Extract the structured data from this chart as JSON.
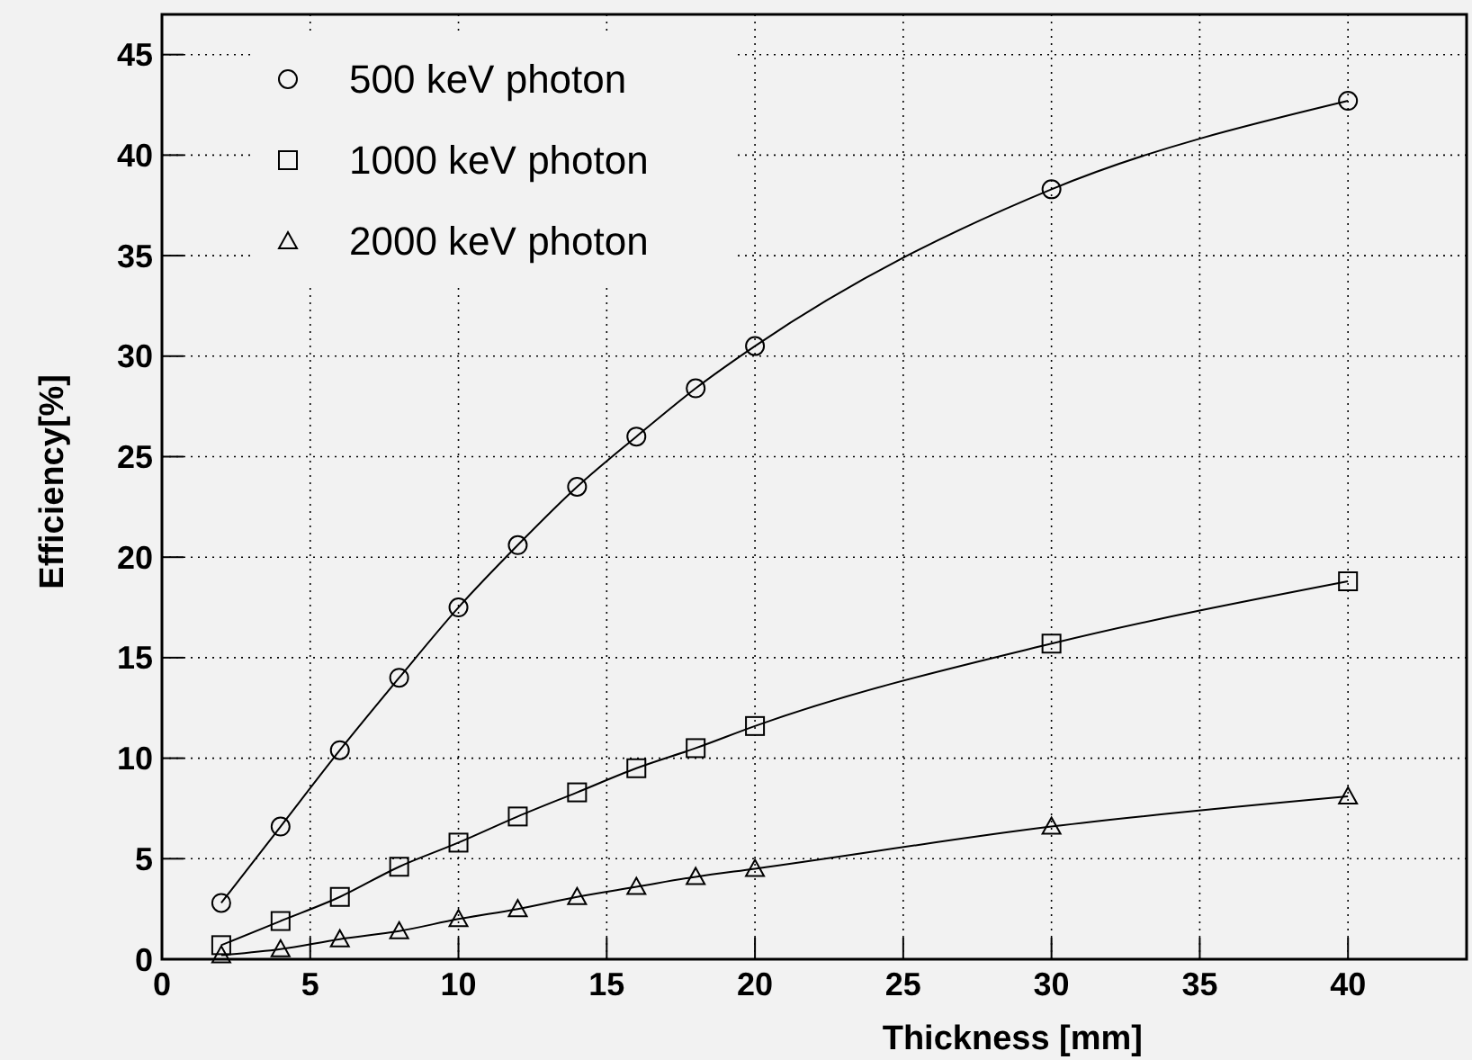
{
  "chart_data": {
    "type": "line",
    "xlabel": "Thickness [mm]",
    "ylabel": "Efficiency[%]",
    "x": [
      2,
      4,
      6,
      8,
      10,
      12,
      14,
      16,
      18,
      20,
      30,
      40
    ],
    "series": [
      {
        "name": "500 keV photon",
        "color": "#000000",
        "marker": "circle",
        "values": [
          2.8,
          6.6,
          10.4,
          14.0,
          17.5,
          20.6,
          23.5,
          26.0,
          28.4,
          30.5,
          38.3,
          42.7
        ]
      },
      {
        "name": "1000 keV photon",
        "color": "#000000",
        "marker": "square",
        "values": [
          0.7,
          1.9,
          3.1,
          4.6,
          5.8,
          7.1,
          8.3,
          9.5,
          10.5,
          11.6,
          15.7,
          18.8
        ]
      },
      {
        "name": "2000 keV photon",
        "color": "#000000",
        "marker": "triangle",
        "values": [
          0.2,
          0.5,
          1.0,
          1.4,
          2.0,
          2.5,
          3.1,
          3.6,
          4.1,
          4.5,
          6.6,
          8.1
        ]
      }
    ],
    "xlim": [
      0,
      44
    ],
    "ylim": [
      0,
      47
    ],
    "xticks": [
      0,
      5,
      10,
      15,
      20,
      25,
      30,
      35,
      40
    ],
    "yticks": [
      0,
      5,
      10,
      15,
      20,
      25,
      30,
      35,
      40,
      45
    ],
    "grid": true,
    "legend": "top left",
    "line_style": "solid"
  }
}
